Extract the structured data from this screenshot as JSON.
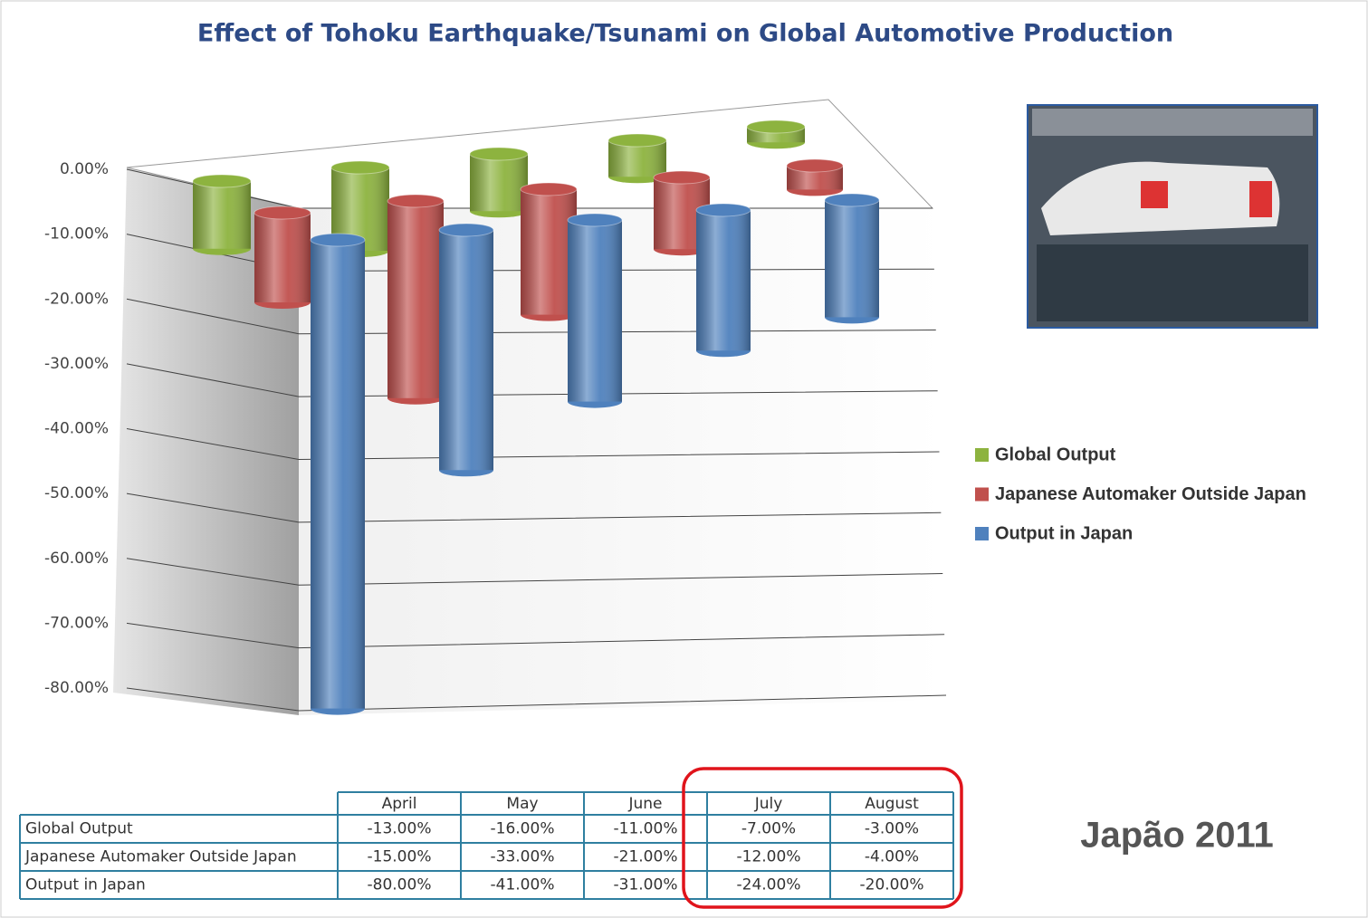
{
  "chart_data": {
    "type": "bar",
    "title": "Effect of Tohoku Earthquake/Tsunami on Global Automotive Production",
    "categories": [
      "April",
      "May",
      "June",
      "July",
      "August"
    ],
    "series": [
      {
        "name": "Global Output",
        "color": "#8db33f",
        "values": [
          -13,
          -16,
          -11,
          -7,
          -3
        ],
        "value_labels": [
          "-13.00%",
          "-16.00%",
          "-11.00%",
          "-7.00%",
          "-3.00%"
        ]
      },
      {
        "name": "Japanese Automaker Outside Japan",
        "color": "#c0504d",
        "values": [
          -15,
          -33,
          -21,
          -12,
          -4
        ],
        "value_labels": [
          "-15.00%",
          "-33.00%",
          "-21.00%",
          "-12.00%",
          "-4.00%"
        ]
      },
      {
        "name": "Output in Japan",
        "color": "#4f81bd",
        "values": [
          -80,
          -41,
          -31,
          -24,
          -20
        ],
        "value_labels": [
          "-80.00%",
          "-41.00%",
          "-31.00%",
          "-24.00%",
          "-20.00%"
        ]
      }
    ],
    "ylim": [
      -80,
      0
    ],
    "yticks": [
      {
        "value": 0,
        "label": "0.00%"
      },
      {
        "value": -10,
        "label": "-10.00%"
      },
      {
        "value": -20,
        "label": "-20.00%"
      },
      {
        "value": -30,
        "label": "-30.00%"
      },
      {
        "value": -40,
        "label": "-40.00%"
      },
      {
        "value": -50,
        "label": "-50.00%"
      },
      {
        "value": -60,
        "label": "-60.00%"
      },
      {
        "value": -70,
        "label": "-70.00%"
      },
      {
        "value": -80,
        "label": "-80.00%"
      }
    ],
    "grid": true,
    "legend": "right",
    "annotation": "Japão 2011"
  }
}
